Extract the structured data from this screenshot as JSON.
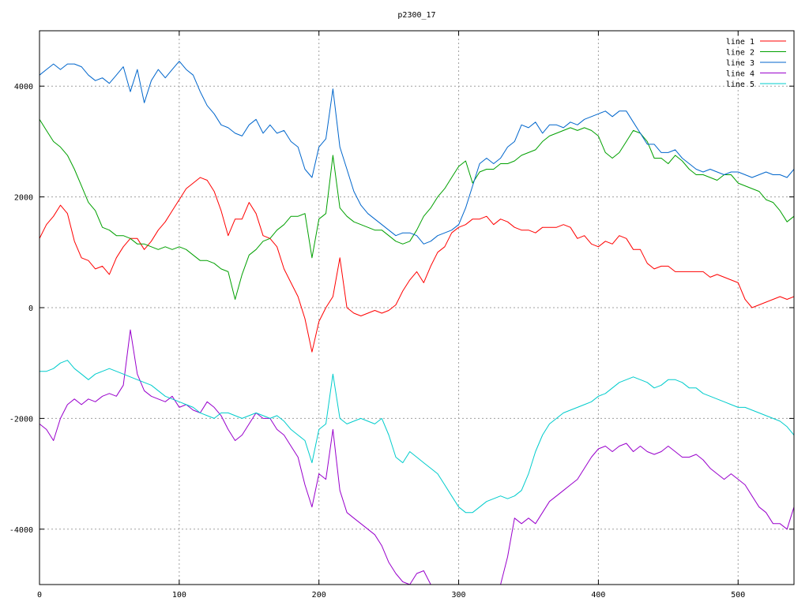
{
  "chart_data": {
    "type": "line",
    "title": "p2300_17",
    "xlabel": "",
    "ylabel": "",
    "xlim": [
      0,
      540
    ],
    "ylim": [
      -5000,
      5000
    ],
    "xticks": [
      0,
      100,
      200,
      300,
      400,
      500
    ],
    "yticks": [
      -4000,
      -2000,
      0,
      2000,
      4000
    ],
    "grid": true,
    "legend_position": "top-right",
    "x": [
      0,
      5,
      10,
      15,
      20,
      25,
      30,
      35,
      40,
      45,
      50,
      55,
      60,
      65,
      70,
      75,
      80,
      85,
      90,
      95,
      100,
      105,
      110,
      115,
      120,
      125,
      130,
      135,
      140,
      145,
      150,
      155,
      160,
      165,
      170,
      175,
      180,
      185,
      190,
      195,
      200,
      205,
      210,
      215,
      220,
      225,
      230,
      235,
      240,
      245,
      250,
      255,
      260,
      265,
      270,
      275,
      280,
      285,
      290,
      295,
      300,
      305,
      310,
      315,
      320,
      325,
      330,
      335,
      340,
      345,
      350,
      355,
      360,
      365,
      370,
      375,
      380,
      385,
      390,
      395,
      400,
      405,
      410,
      415,
      420,
      425,
      430,
      435,
      440,
      445,
      450,
      455,
      460,
      465,
      470,
      475,
      480,
      485,
      490,
      495,
      500,
      505,
      510,
      515,
      520,
      525,
      530,
      535,
      540
    ],
    "series": [
      {
        "name": "line 1",
        "color": "#ff0000",
        "values": [
          1250,
          1500,
          1650,
          1850,
          1700,
          1200,
          900,
          850,
          700,
          750,
          600,
          900,
          1100,
          1250,
          1250,
          1050,
          1200,
          1400,
          1550,
          1750,
          1950,
          2150,
          2250,
          2350,
          2300,
          2100,
          1750,
          1300,
          1600,
          1600,
          1900,
          1700,
          1300,
          1250,
          1100,
          700,
          450,
          200,
          -200,
          -800,
          -250,
          0,
          200,
          900,
          0,
          -100,
          -150,
          -100,
          -50,
          -100,
          -50,
          50,
          300,
          500,
          650,
          450,
          750,
          1000,
          1100,
          1350,
          1450,
          1500,
          1600,
          1600,
          1650,
          1500,
          1600,
          1550,
          1450,
          1400,
          1400,
          1350,
          1450,
          1450,
          1450,
          1500,
          1450,
          1250,
          1300,
          1150,
          1100,
          1200,
          1150,
          1300,
          1250,
          1050,
          1050,
          800,
          700,
          750,
          750,
          650,
          650,
          650,
          650,
          650,
          550,
          600,
          550,
          500,
          450,
          150,
          0,
          50,
          100,
          150,
          200,
          150,
          200
        ]
      },
      {
        "name": "line 2",
        "color": "#00a000",
        "values": [
          3400,
          3200,
          3000,
          2900,
          2750,
          2500,
          2200,
          1900,
          1750,
          1450,
          1400,
          1300,
          1300,
          1250,
          1150,
          1150,
          1100,
          1050,
          1100,
          1050,
          1100,
          1050,
          950,
          850,
          850,
          800,
          700,
          650,
          150,
          600,
          950,
          1050,
          1200,
          1250,
          1400,
          1500,
          1650,
          1650,
          1700,
          900,
          1600,
          1700,
          2750,
          1800,
          1650,
          1550,
          1500,
          1450,
          1400,
          1400,
          1300,
          1200,
          1150,
          1200,
          1400,
          1650,
          1800,
          2000,
          2150,
          2350,
          2550,
          2650,
          2250,
          2450,
          2500,
          2500,
          2600,
          2600,
          2650,
          2750,
          2800,
          2850,
          3000,
          3100,
          3150,
          3200,
          3250,
          3200,
          3250,
          3200,
          3100,
          2800,
          2700,
          2800,
          3000,
          3200,
          3150,
          3000,
          2700,
          2700,
          2600,
          2750,
          2650,
          2500,
          2400,
          2400,
          2350,
          2300,
          2400,
          2400,
          2250,
          2200,
          2150,
          2100,
          1950,
          1900,
          1750,
          1550,
          1650
        ]
      },
      {
        "name": "line 3",
        "color": "#0066cc",
        "values": [
          4200,
          4300,
          4400,
          4300,
          4400,
          4400,
          4350,
          4200,
          4100,
          4150,
          4050,
          4200,
          4350,
          3900,
          4300,
          3700,
          4100,
          4300,
          4150,
          4300,
          4450,
          4300,
          4200,
          3900,
          3650,
          3500,
          3300,
          3250,
          3150,
          3100,
          3300,
          3400,
          3150,
          3300,
          3150,
          3200,
          3000,
          2900,
          2500,
          2350,
          2900,
          3050,
          3950,
          2900,
          2500,
          2100,
          1850,
          1700,
          1600,
          1500,
          1400,
          1300,
          1350,
          1350,
          1300,
          1150,
          1200,
          1300,
          1350,
          1400,
          1500,
          1800,
          2200,
          2600,
          2700,
          2600,
          2700,
          2900,
          3000,
          3300,
          3250,
          3350,
          3150,
          3300,
          3300,
          3250,
          3350,
          3300,
          3400,
          3450,
          3500,
          3550,
          3450,
          3550,
          3550,
          3350,
          3150,
          2950,
          2950,
          2800,
          2800,
          2850,
          2700,
          2600,
          2500,
          2450,
          2500,
          2450,
          2400,
          2450,
          2450,
          2400,
          2350,
          2400,
          2450,
          2400,
          2400,
          2350,
          2500
        ]
      },
      {
        "name": "line 4",
        "color": "#9900cc",
        "values": [
          -2100,
          -2200,
          -2400,
          -2000,
          -1750,
          -1650,
          -1750,
          -1650,
          -1700,
          -1600,
          -1550,
          -1600,
          -1400,
          -400,
          -1200,
          -1500,
          -1600,
          -1650,
          -1700,
          -1600,
          -1800,
          -1750,
          -1850,
          -1900,
          -1700,
          -1800,
          -1950,
          -2200,
          -2400,
          -2300,
          -2100,
          -1900,
          -2000,
          -2000,
          -2200,
          -2300,
          -2500,
          -2700,
          -3200,
          -3600,
          -3000,
          -3100,
          -2200,
          -3300,
          -3700,
          -3800,
          -3900,
          -4000,
          -4100,
          -4300,
          -4600,
          -4800,
          -4950,
          -5000,
          -4800,
          -4750,
          -5000,
          -5000,
          -5000,
          -5000,
          -5000,
          -5000,
          -5000,
          -5000,
          -5000,
          -5000,
          -5000,
          -4500,
          -3800,
          -3900,
          -3800,
          -3900,
          -3700,
          -3500,
          -3400,
          -3300,
          -3200,
          -3100,
          -2900,
          -2700,
          -2550,
          -2500,
          -2600,
          -2500,
          -2450,
          -2600,
          -2500,
          -2600,
          -2650,
          -2600,
          -2500,
          -2600,
          -2700,
          -2700,
          -2650,
          -2750,
          -2900,
          -3000,
          -3100,
          -3000,
          -3100,
          -3200,
          -3400,
          -3600,
          -3700,
          -3900,
          -3900,
          -4000,
          -3600
        ]
      },
      {
        "name": "line 5",
        "color": "#00cccc",
        "values": [
          -1150,
          -1150,
          -1100,
          -1000,
          -950,
          -1100,
          -1200,
          -1300,
          -1200,
          -1150,
          -1100,
          -1150,
          -1200,
          -1250,
          -1300,
          -1350,
          -1400,
          -1500,
          -1600,
          -1650,
          -1700,
          -1750,
          -1800,
          -1900,
          -1950,
          -2000,
          -1900,
          -1900,
          -1950,
          -2000,
          -1950,
          -1900,
          -1950,
          -2000,
          -1950,
          -2050,
          -2200,
          -2300,
          -2400,
          -2800,
          -2200,
          -2100,
          -1200,
          -2000,
          -2100,
          -2050,
          -2000,
          -2050,
          -2100,
          -2000,
          -2300,
          -2700,
          -2800,
          -2600,
          -2700,
          -2800,
          -2900,
          -3000,
          -3200,
          -3400,
          -3600,
          -3700,
          -3700,
          -3600,
          -3500,
          -3450,
          -3400,
          -3450,
          -3400,
          -3300,
          -3000,
          -2600,
          -2300,
          -2100,
          -2000,
          -1900,
          -1850,
          -1800,
          -1750,
          -1700,
          -1600,
          -1550,
          -1450,
          -1350,
          -1300,
          -1250,
          -1300,
          -1350,
          -1450,
          -1400,
          -1300,
          -1300,
          -1350,
          -1450,
          -1450,
          -1550,
          -1600,
          -1650,
          -1700,
          -1750,
          -1800,
          -1800,
          -1850,
          -1900,
          -1950,
          -2000,
          -2050,
          -2150,
          -2300
        ]
      }
    ]
  }
}
